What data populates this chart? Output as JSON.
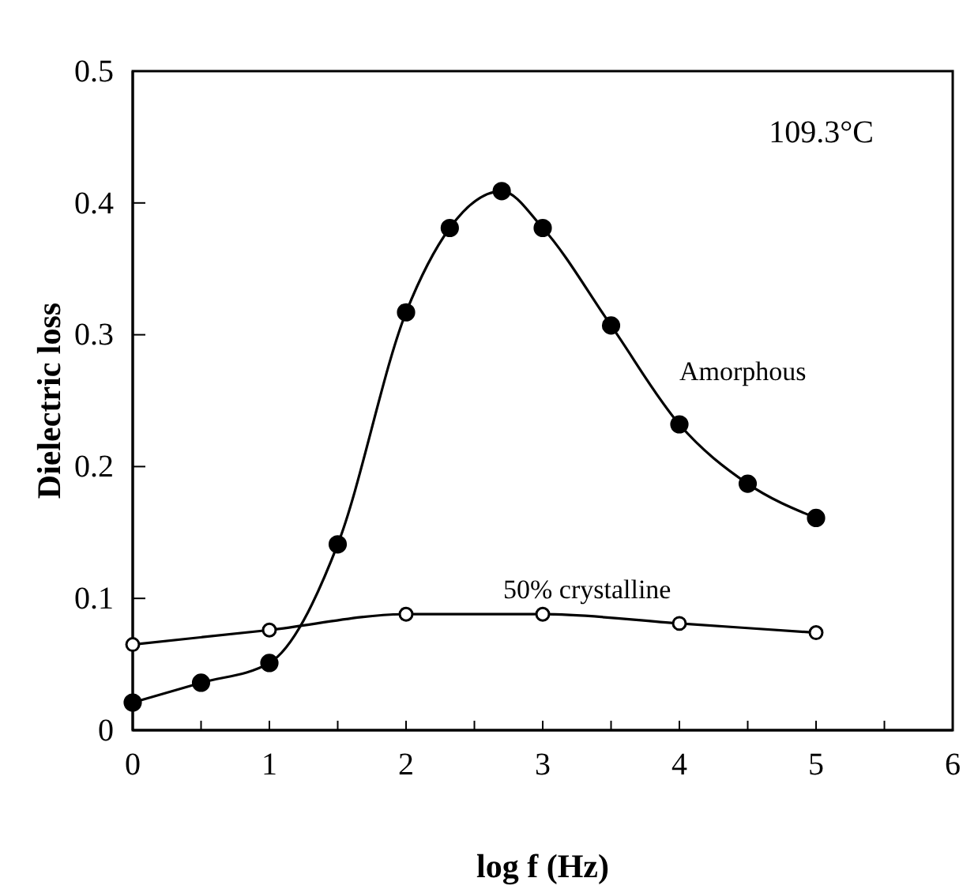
{
  "chart_data": {
    "type": "line",
    "xlabel": "log f (Hz)",
    "ylabel": "Dielectric loss",
    "annotations": [
      "109.3°C"
    ],
    "xlim": [
      0,
      6
    ],
    "xticks": [
      0,
      {
        "value": 0.5,
        "label": null
      },
      1,
      {
        "value": 1.5,
        "label": null
      },
      2,
      {
        "value": 2.5,
        "label": null
      },
      3,
      {
        "value": 3.5,
        "label": null
      },
      4,
      {
        "value": 4.5,
        "label": null
      },
      5,
      {
        "value": 5.5,
        "label": null
      },
      6
    ],
    "ylim": [
      0,
      0.5
    ],
    "yticks": [
      {
        "value": 0,
        "label": "0"
      },
      0.1,
      0.2,
      0.3,
      0.4,
      0.5
    ],
    "marker": "circle",
    "grid": false,
    "series": [
      {
        "name": "Amorphous",
        "color": "#000000",
        "x": [
          0,
          0.5,
          1,
          1.5,
          2,
          2.32,
          2.7,
          3,
          3.5,
          4,
          4.5,
          5
        ],
        "values": [
          0.021,
          0.036,
          0.051,
          0.141,
          0.317,
          0.381,
          0.409,
          0.381,
          0.307,
          0.232,
          0.187,
          0.161
        ]
      },
      {
        "name": "50% crystalline",
        "color": "#000000",
        "x": [
          0,
          1,
          2,
          3,
          4,
          5
        ],
        "values": [
          0.065,
          0.076,
          0.088,
          0.088,
          0.081,
          0.074
        ]
      }
    ]
  }
}
